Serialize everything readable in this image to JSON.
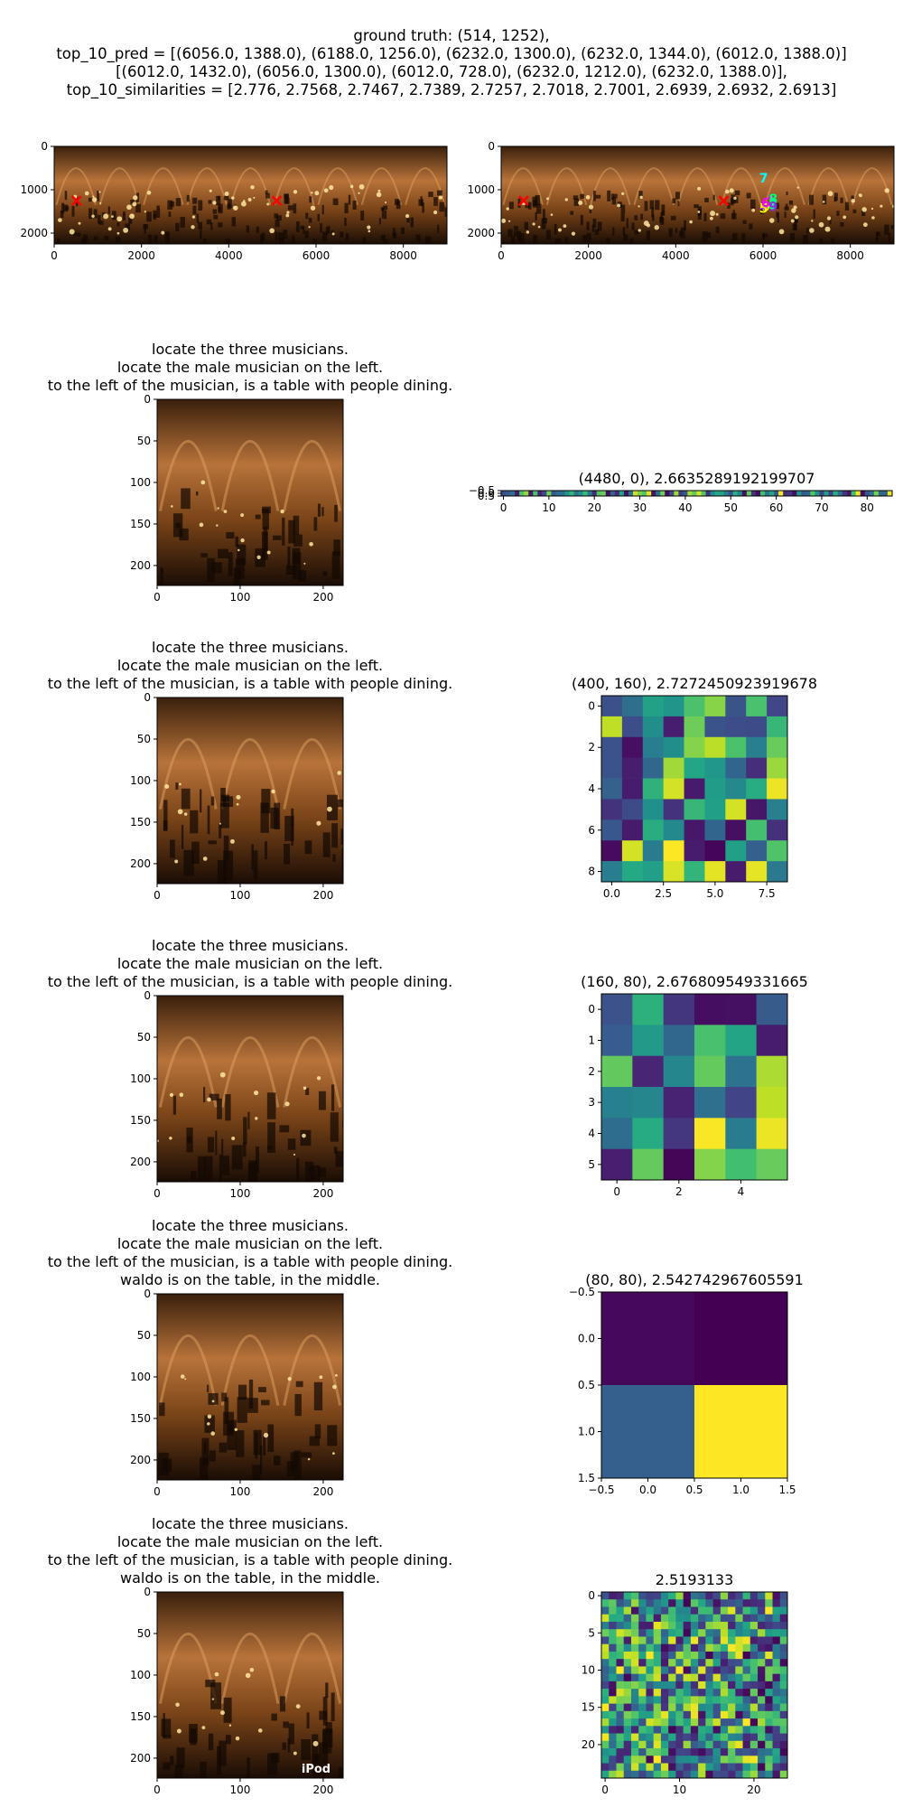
{
  "header": {
    "lines": [
      "ground truth: (514, 1252),",
      "top_10_pred = [(6056.0, 1388.0), (6188.0, 1256.0), (6232.0, 1300.0), (6232.0, 1344.0), (6012.0, 1388.0)]",
      "[(6012.0, 1432.0), (6056.0, 1300.0), (6012.0, 728.0), (6232.0, 1212.0), (6232.0, 1388.0)],",
      "top_10_similarities = [2.776, 2.7568, 2.7467, 2.7389, 2.7257, 2.7018, 2.7001, 2.6939, 2.6932, 2.6913]"
    ]
  },
  "colors": {
    "panorama_base": "#5a3414",
    "marker_gt": "#ff0000",
    "marker_pred": [
      "#ffff00",
      "#ff00ff",
      "#00ffff",
      "#00ff7f",
      "#8a2be2"
    ],
    "viridis_low": "#440154",
    "viridis_high": "#fde725"
  },
  "chart_data": [
    {
      "id": "pano-gt",
      "type": "image",
      "xlim": [
        0,
        9000
      ],
      "ylim": [
        2250,
        0
      ],
      "xticks": [
        "0",
        "2000",
        "4000",
        "6000",
        "8000"
      ],
      "yticks": [
        "0",
        "1000",
        "2000"
      ],
      "markers": [
        {
          "x": 514,
          "y": 1252,
          "symbol": "x"
        },
        {
          "x": 5100,
          "y": 1252,
          "symbol": "x"
        }
      ]
    },
    {
      "id": "pano-pred",
      "type": "image",
      "xlim": [
        0,
        9000
      ],
      "ylim": [
        2250,
        0
      ],
      "xticks": [
        "0",
        "2000",
        "4000",
        "6000",
        "8000"
      ],
      "yticks": [
        "0",
        "1000",
        "2000"
      ],
      "markers": [
        {
          "x": 514,
          "y": 1252,
          "symbol": "x"
        },
        {
          "x": 5100,
          "y": 1252,
          "symbol": "x"
        },
        {
          "x": 6056,
          "y": 1388,
          "symbol": "label",
          "label": "0"
        },
        {
          "x": 6188,
          "y": 1256,
          "symbol": "label",
          "label": "1"
        },
        {
          "x": 6232,
          "y": 1300,
          "symbol": "label",
          "label": "2"
        },
        {
          "x": 6232,
          "y": 1344,
          "symbol": "label",
          "label": "3"
        },
        {
          "x": 6012,
          "y": 1388,
          "symbol": "label",
          "label": "4"
        },
        {
          "x": 6012,
          "y": 1432,
          "symbol": "label",
          "label": "5"
        },
        {
          "x": 6056,
          "y": 1300,
          "symbol": "label",
          "label": "6"
        },
        {
          "x": 6012,
          "y": 728,
          "symbol": "label",
          "label": "7"
        },
        {
          "x": 6232,
          "y": 1212,
          "symbol": "label",
          "label": "8"
        },
        {
          "x": 6232,
          "y": 1388,
          "symbol": "label",
          "label": "9"
        }
      ]
    },
    {
      "id": "crop-1",
      "type": "image",
      "title": [
        "locate the three musicians.",
        "locate the male musician on the left.",
        "to the left of the musician, is a table with people dining."
      ],
      "xlim": [
        0,
        224
      ],
      "ylim": [
        224,
        0
      ],
      "xticks": [
        "0",
        "100",
        "200"
      ],
      "yticks": [
        "0",
        "50",
        "100",
        "150",
        "200"
      ]
    },
    {
      "id": "heat-1",
      "type": "heatmap",
      "title": "(4480, 0), 2.6635289192199707",
      "cols": 86,
      "rows": 1,
      "xticks": [
        "0",
        "10",
        "20",
        "30",
        "40",
        "50",
        "60",
        "70",
        "80"
      ],
      "yticks": [
        "−0.5",
        "0.0",
        "0.5"
      ],
      "seed": 11
    },
    {
      "id": "crop-2",
      "type": "image",
      "title": [
        "locate the three musicians.",
        "locate the male musician on the left.",
        "to the left of the musician, is a table with people dining."
      ],
      "xlim": [
        0,
        224
      ],
      "ylim": [
        224,
        0
      ],
      "xticks": [
        "0",
        "100",
        "200"
      ],
      "yticks": [
        "0",
        "50",
        "100",
        "150",
        "200"
      ]
    },
    {
      "id": "heat-2",
      "type": "heatmap",
      "title": "(400, 160), 2.7272450923919678",
      "cols": 9,
      "rows": 9,
      "xticks": [
        "0.0",
        "2.5",
        "5.0",
        "7.5"
      ],
      "yticks": [
        "0",
        "2",
        "4",
        "6",
        "8"
      ],
      "seed": 23
    },
    {
      "id": "crop-3",
      "type": "image",
      "title": [
        "locate the three musicians.",
        "locate the male musician on the left.",
        "to the left of the musician, is a table with people dining."
      ],
      "xlim": [
        0,
        224
      ],
      "ylim": [
        224,
        0
      ],
      "xticks": [
        "0",
        "100",
        "200"
      ],
      "yticks": [
        "0",
        "50",
        "100",
        "150",
        "200"
      ]
    },
    {
      "id": "heat-3",
      "type": "heatmap",
      "title": "(160, 80), 2.676809549331665",
      "cols": 6,
      "rows": 6,
      "xticks": [
        "0",
        "2",
        "4"
      ],
      "yticks": [
        "0",
        "1",
        "2",
        "3",
        "4",
        "5"
      ],
      "seed": 37
    },
    {
      "id": "crop-4",
      "type": "image",
      "title": [
        "locate the three musicians.",
        "locate the male musician on the left.",
        "to the left of the musician, is a table with people dining.",
        "waldo is on the table, in the middle."
      ],
      "xlim": [
        0,
        224
      ],
      "ylim": [
        224,
        0
      ],
      "xticks": [
        "0",
        "100",
        "200"
      ],
      "yticks": [
        "0",
        "50",
        "100",
        "150",
        "200"
      ]
    },
    {
      "id": "heat-4",
      "type": "heatmap",
      "title": "(80, 80), 2.542742967605591",
      "cols": 2,
      "rows": 2,
      "values": [
        [
          0.02,
          0.0
        ],
        [
          0.3,
          1.0
        ]
      ],
      "xticks": [
        "−0.5",
        "0.0",
        "0.5",
        "1.0",
        "1.5"
      ],
      "yticks": [
        "−0.5",
        "0.0",
        "0.5",
        "1.0",
        "1.5"
      ]
    },
    {
      "id": "crop-5",
      "type": "image",
      "title": [
        "locate the three musicians.",
        "locate the male musician on the left.",
        "to the left of the musician, is a table with people dining.",
        "waldo is on the table, in the middle."
      ],
      "xlim": [
        0,
        224
      ],
      "ylim": [
        224,
        0
      ],
      "xticks": [
        "0",
        "100",
        "200"
      ],
      "yticks": [
        "0",
        "50",
        "100",
        "150",
        "200"
      ],
      "watermark": "iPod"
    },
    {
      "id": "heat-5",
      "type": "heatmap",
      "title": "2.5193133",
      "cols": 25,
      "rows": 25,
      "xticks": [
        "0",
        "10",
        "20"
      ],
      "yticks": [
        "0",
        "5",
        "10",
        "15",
        "20"
      ],
      "seed": 53
    }
  ]
}
